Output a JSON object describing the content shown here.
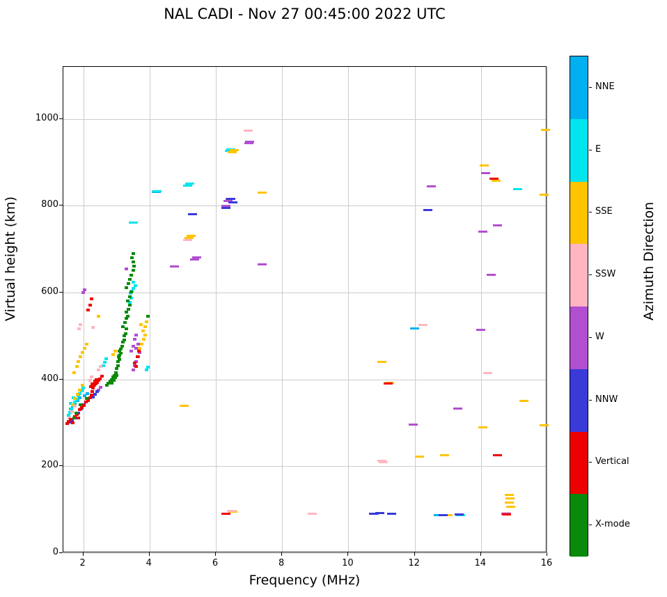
{
  "title": "NAL CADI - Nov 27 00:45:00 2022 UTC",
  "chart_data": {
    "type": "scatter",
    "title": "NAL CADI - Nov 27 00:45:00 2022 UTC",
    "xlabel": "Frequency (MHz)",
    "ylabel": "Virtual height (km)",
    "xlim": [
      1.4,
      16
    ],
    "ylim": [
      0,
      1120
    ],
    "xticks": [
      2,
      4,
      6,
      8,
      10,
      12,
      14,
      16
    ],
    "yticks": [
      0,
      200,
      400,
      600,
      800,
      1000
    ],
    "grid": true,
    "legend_position": "right-colorbar",
    "colorbar": {
      "title": "Azimuth Direction",
      "labels_top_to_bottom": [
        "NNE",
        "E",
        "SSE",
        "SSW",
        "W",
        "NNW",
        "Vertical",
        "X-mode"
      ]
    },
    "series": [
      {
        "name": "NNE",
        "color": "#00b0f0",
        "points": [
          [
            1.62,
            332
          ],
          [
            1.68,
            338
          ],
          [
            1.75,
            345
          ],
          [
            1.82,
            352
          ],
          [
            1.9,
            358
          ],
          [
            2.05,
            362
          ],
          [
            2.12,
            368
          ],
          [
            10.78,
            90
          ],
          [
            12.72,
            88
          ],
          [
            12.0,
            517
          ],
          [
            4.2,
            832
          ]
        ]
      },
      {
        "name": "E",
        "color": "#00e5ee",
        "points": [
          [
            1.55,
            318
          ],
          [
            1.6,
            325
          ],
          [
            1.65,
            332
          ],
          [
            1.7,
            340
          ],
          [
            1.75,
            348
          ],
          [
            1.8,
            355
          ],
          [
            1.85,
            362
          ],
          [
            1.9,
            368
          ],
          [
            1.95,
            374
          ],
          [
            2.0,
            380
          ],
          [
            1.7,
            358
          ],
          [
            1.62,
            345
          ],
          [
            2.6,
            432
          ],
          [
            2.65,
            440
          ],
          [
            2.7,
            447
          ],
          [
            3.9,
            422
          ],
          [
            3.95,
            428
          ],
          [
            3.42,
            598
          ],
          [
            3.47,
            604
          ],
          [
            3.52,
            610
          ],
          [
            3.57,
            616
          ],
          [
            3.5,
            624
          ],
          [
            3.45,
            588
          ],
          [
            3.4,
            578
          ],
          [
            3.52,
            762
          ],
          [
            4.22,
            833
          ],
          [
            5.15,
            846
          ],
          [
            5.22,
            851
          ],
          [
            6.4,
            926
          ],
          [
            6.45,
            930
          ],
          [
            15.1,
            838
          ],
          [
            13.38,
            88
          ]
        ]
      },
      {
        "name": "SSE",
        "color": "#ffc400",
        "points": [
          [
            1.68,
            342
          ],
          [
            1.75,
            356
          ],
          [
            1.82,
            366
          ],
          [
            1.9,
            376
          ],
          [
            1.98,
            386
          ],
          [
            1.72,
            416
          ],
          [
            1.8,
            430
          ],
          [
            1.86,
            441
          ],
          [
            1.92,
            452
          ],
          [
            1.98,
            462
          ],
          [
            2.04,
            472
          ],
          [
            2.1,
            482
          ],
          [
            2.45,
            545
          ],
          [
            2.9,
            457
          ],
          [
            2.96,
            466
          ],
          [
            3.7,
            472
          ],
          [
            3.76,
            482
          ],
          [
            3.82,
            492
          ],
          [
            3.86,
            502
          ],
          [
            3.8,
            512
          ],
          [
            3.86,
            522
          ],
          [
            3.9,
            532
          ],
          [
            3.74,
            526
          ],
          [
            5.05,
            340
          ],
          [
            5.2,
            726
          ],
          [
            5.26,
            731
          ],
          [
            6.5,
            924
          ],
          [
            6.56,
            929
          ],
          [
            7.4,
            830
          ],
          [
            11.0,
            440
          ],
          [
            11.25,
            392
          ],
          [
            12.15,
            222
          ],
          [
            12.9,
            226
          ],
          [
            13.0,
            88
          ],
          [
            14.05,
            290
          ],
          [
            14.1,
            893
          ],
          [
            14.45,
            858
          ],
          [
            15.3,
            350
          ],
          [
            15.9,
            295
          ],
          [
            15.9,
            825
          ],
          [
            15.95,
            975
          ],
          [
            14.85,
            134
          ],
          [
            14.88,
            126
          ],
          [
            14.85,
            117
          ],
          [
            14.9,
            107
          ],
          [
            6.52,
            95
          ]
        ]
      },
      {
        "name": "SSW",
        "color": "#ffb6c1",
        "points": [
          [
            1.58,
            312
          ],
          [
            1.66,
            326
          ],
          [
            1.74,
            338
          ],
          [
            1.88,
            516
          ],
          [
            1.92,
            526
          ],
          [
            2.3,
            520
          ],
          [
            2.46,
            422
          ],
          [
            2.52,
            430
          ],
          [
            2.2,
            398
          ],
          [
            2.26,
            406
          ],
          [
            5.15,
            722
          ],
          [
            6.98,
            974
          ],
          [
            8.9,
            90
          ],
          [
            6.48,
            97
          ],
          [
            11.0,
            212
          ],
          [
            11.06,
            209
          ],
          [
            12.25,
            525
          ],
          [
            14.2,
            415
          ],
          [
            14.78,
            92
          ]
        ]
      },
      {
        "name": "W",
        "color": "#b24fd0",
        "points": [
          [
            2.0,
            600
          ],
          [
            2.05,
            606
          ],
          [
            2.45,
            376
          ],
          [
            2.52,
            382
          ],
          [
            3.5,
            422
          ],
          [
            3.55,
            432
          ],
          [
            3.6,
            442
          ],
          [
            3.65,
            452
          ],
          [
            3.7,
            462
          ],
          [
            3.6,
            472
          ],
          [
            3.66,
            482
          ],
          [
            3.56,
            492
          ],
          [
            3.6,
            502
          ],
          [
            3.5,
            476
          ],
          [
            3.44,
            466
          ],
          [
            3.3,
            655
          ],
          [
            4.75,
            660
          ],
          [
            5.35,
            676
          ],
          [
            5.42,
            681
          ],
          [
            6.3,
            800
          ],
          [
            6.36,
            812
          ],
          [
            6.42,
            816
          ],
          [
            7.0,
            945
          ],
          [
            7.02,
            948
          ],
          [
            7.4,
            665
          ],
          [
            11.95,
            296
          ],
          [
            12.5,
            845
          ],
          [
            13.3,
            333
          ],
          [
            14.0,
            515
          ],
          [
            14.05,
            741
          ],
          [
            14.15,
            876
          ],
          [
            14.5,
            755
          ],
          [
            14.3,
            641
          ],
          [
            14.75,
            90
          ]
        ]
      },
      {
        "name": "NNW",
        "color": "#3a3ad9",
        "points": [
          [
            1.6,
            302
          ],
          [
            1.66,
            307
          ],
          [
            1.76,
            312
          ],
          [
            1.86,
            322
          ],
          [
            2.3,
            360
          ],
          [
            2.36,
            366
          ],
          [
            2.42,
            372
          ],
          [
            1.94,
            332
          ],
          [
            2.02,
            342
          ],
          [
            5.3,
            781
          ],
          [
            6.3,
            795
          ],
          [
            6.46,
            816
          ],
          [
            6.52,
            808
          ],
          [
            12.4,
            790
          ],
          [
            10.75,
            90
          ],
          [
            10.95,
            92
          ],
          [
            12.85,
            88
          ],
          [
            13.35,
            89
          ],
          [
            11.3,
            90
          ]
        ]
      },
      {
        "name": "Vertical",
        "color": "#ee0000",
        "points": [
          [
            1.52,
            298
          ],
          [
            1.56,
            303
          ],
          [
            1.62,
            308
          ],
          [
            1.68,
            300
          ],
          [
            1.74,
            315
          ],
          [
            1.8,
            320
          ],
          [
            1.86,
            312
          ],
          [
            1.9,
            330
          ],
          [
            1.96,
            336
          ],
          [
            2.02,
            341
          ],
          [
            2.08,
            348
          ],
          [
            2.14,
            352
          ],
          [
            2.2,
            358
          ],
          [
            2.24,
            364
          ],
          [
            2.28,
            372
          ],
          [
            2.3,
            380
          ],
          [
            2.34,
            386
          ],
          [
            2.38,
            390
          ],
          [
            2.42,
            394
          ],
          [
            2.46,
            398
          ],
          [
            2.3,
            390
          ],
          [
            2.36,
            396
          ],
          [
            2.4,
            400
          ],
          [
            2.22,
            384
          ],
          [
            2.28,
            390
          ],
          [
            2.5,
            402
          ],
          [
            2.56,
            408
          ],
          [
            2.14,
            560
          ],
          [
            2.2,
            572
          ],
          [
            2.26,
            586
          ],
          [
            3.56,
            438
          ],
          [
            3.6,
            430
          ],
          [
            3.64,
            452
          ],
          [
            3.68,
            466
          ],
          [
            6.3,
            90
          ],
          [
            14.5,
            226
          ],
          [
            14.4,
            862
          ],
          [
            11.2,
            390
          ],
          [
            14.78,
            89
          ]
        ]
      },
      {
        "name": "X-mode",
        "color": "#0a8a0a",
        "points": [
          [
            1.72,
            312
          ],
          [
            1.78,
            322
          ],
          [
            1.92,
            342
          ],
          [
            2.1,
            356
          ],
          [
            2.72,
            386
          ],
          [
            2.76,
            391
          ],
          [
            2.82,
            396
          ],
          [
            2.86,
            400
          ],
          [
            2.9,
            406
          ],
          [
            2.94,
            410
          ],
          [
            2.98,
            416
          ],
          [
            3.0,
            426
          ],
          [
            3.04,
            431
          ],
          [
            3.04,
            441
          ],
          [
            3.08,
            446
          ],
          [
            3.1,
            456
          ],
          [
            3.14,
            461
          ],
          [
            3.14,
            471
          ],
          [
            3.18,
            476
          ],
          [
            3.2,
            486
          ],
          [
            3.24,
            491
          ],
          [
            3.24,
            501
          ],
          [
            3.28,
            506
          ],
          [
            3.3,
            516
          ],
          [
            3.2,
            521
          ],
          [
            3.26,
            531
          ],
          [
            3.3,
            541
          ],
          [
            3.34,
            546
          ],
          [
            3.3,
            556
          ],
          [
            3.36,
            561
          ],
          [
            3.4,
            571
          ],
          [
            3.34,
            581
          ],
          [
            3.4,
            591
          ],
          [
            3.44,
            601
          ],
          [
            3.3,
            611
          ],
          [
            3.36,
            621
          ],
          [
            3.4,
            631
          ],
          [
            3.44,
            641
          ],
          [
            3.5,
            651
          ],
          [
            3.54,
            661
          ],
          [
            3.5,
            671
          ],
          [
            3.46,
            681
          ],
          [
            3.52,
            690
          ],
          [
            2.86,
            392
          ],
          [
            2.92,
            398
          ],
          [
            2.96,
            404
          ],
          [
            3.0,
            410
          ],
          [
            3.06,
            452
          ],
          [
            3.1,
            466
          ],
          [
            3.95,
            545
          ]
        ]
      }
    ]
  }
}
